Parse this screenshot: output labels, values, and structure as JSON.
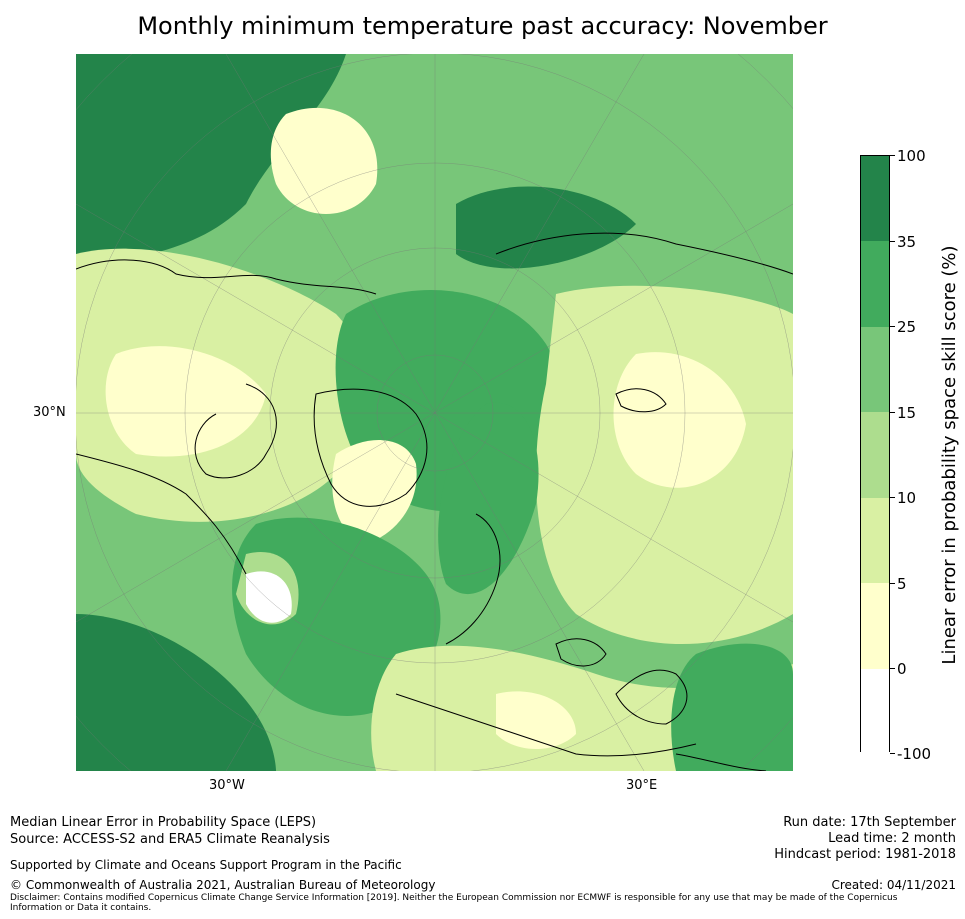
{
  "title": "Monthly minimum temperature past accuracy: November",
  "map": {
    "lat_label": "30°N",
    "lon_labels": [
      "30°W",
      "30°E"
    ],
    "colors": {
      "ocean_high": "#23844a",
      "high": "#41ab5d",
      "mid_high": "#78c679",
      "mid": "#addd8e",
      "low": "#d9f0a3",
      "very_low": "#ffffcc",
      "none": "#ffffff",
      "coast": "#000000"
    }
  },
  "colorbar": {
    "label": "Linear error in probability space skill score (%)",
    "ticks": [
      "100",
      "35",
      "25",
      "15",
      "10",
      "5",
      "0",
      "-100"
    ],
    "colors": [
      "#23844a",
      "#41ab5d",
      "#78c679",
      "#addd8e",
      "#d9f0a3",
      "#ffffcc",
      "#ffffff"
    ]
  },
  "footer": {
    "left_line1": "Median Linear Error in Probability Space (LEPS)",
    "left_line2": "Source: ACCESS-S2 and ERA5 Climate Reanalysis",
    "support": "Supported by Climate and Oceans Support Program in the Pacific",
    "copyright": "© Commonwealth of Australia 2021, Australian Bureau of Meteorology",
    "disclaimer_line1": "Disclaimer: Contains modified Copernicus Climate Change Service Information [2019]. Neither the European Commission nor ECMWF is responsible for any use that may be made of the Copernicus",
    "disclaimer_line2": "Information or Data it contains.",
    "run_date": "Run date: 17th September",
    "lead_time": "Lead time: 2 month",
    "hindcast": "Hindcast period: 1981-2018",
    "created": "Created: 04/11/2021"
  }
}
